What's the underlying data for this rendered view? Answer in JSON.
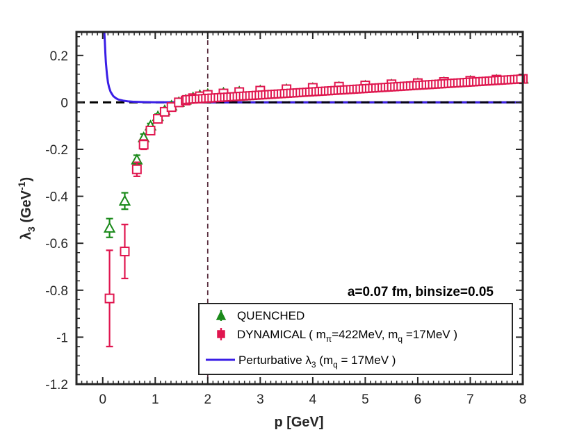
{
  "chart_data": {
    "type": "scatter",
    "title": "",
    "xlabel": "p [GeV]",
    "ylabel": {
      "main": "λ",
      "sub": "3",
      "unit_open": " (GeV",
      "unit_sup": "-1",
      "unit_close": ")"
    },
    "xlim": [
      -0.5,
      8
    ],
    "ylim": [
      -1.2,
      0.3
    ],
    "xticks": [
      0,
      1,
      2,
      3,
      4,
      5,
      6,
      7,
      8
    ],
    "yticks": [
      0.2,
      0,
      -0.2,
      -0.4,
      -0.6,
      -0.8,
      -1,
      -1.2
    ],
    "xtick_labels": [
      "0",
      "1",
      "2",
      "3",
      "4",
      "5",
      "6",
      "7",
      "8"
    ],
    "ytick_labels": [
      "0.2",
      "0",
      "-0.2",
      "-0.4",
      "-0.6",
      "-0.8",
      "-1",
      "-1.2"
    ],
    "reference_lines": {
      "horizontal_y": 0,
      "vertical_x": 2
    },
    "annotation": "a=0.07 fm, binsize=0.05",
    "colors": {
      "quenched": "#1a8a1a",
      "dynamical": "#e0164f",
      "perturbative": "#3a1ee6",
      "zero_line": "#000000",
      "vline": "#5a3040",
      "axis": "#262626"
    },
    "series": [
      {
        "name": "QUENCHED",
        "marker": "triangle",
        "x": [
          0.13,
          0.42,
          0.65,
          0.78,
          0.91,
          1.05,
          1.18,
          1.31,
          1.45,
          1.58,
          1.72,
          1.85,
          2.0,
          2.3,
          2.6,
          3.0,
          3.5,
          4.0,
          4.5,
          5.0,
          5.5,
          6.0,
          6.5,
          7.0,
          7.5,
          8.0
        ],
        "y": [
          -0.535,
          -0.42,
          -0.245,
          -0.15,
          -0.1,
          -0.06,
          -0.035,
          -0.015,
          0.0,
          0.01,
          0.02,
          0.03,
          0.035,
          0.04,
          0.045,
          0.05,
          0.055,
          0.06,
          0.065,
          0.07,
          0.075,
          0.08,
          0.085,
          0.09,
          0.095,
          0.1
        ],
        "err": [
          0.04,
          0.035,
          0.02,
          0.015,
          0.01,
          0.01,
          0.008,
          0.008,
          0.006,
          0.005,
          0.005,
          0.005,
          0.005,
          0.004,
          0.004,
          0.004,
          0.004,
          0.004,
          0.004,
          0.004,
          0.004,
          0.004,
          0.004,
          0.004,
          0.004,
          0.004
        ]
      },
      {
        "name": "DYNAMICAL",
        "legend_parts": [
          "DYNAMICAL ( m",
          "π",
          "=422MeV, m",
          "q",
          " =17MeV )"
        ],
        "marker": "square",
        "x": [
          0.13,
          0.42,
          0.65,
          0.78,
          0.91,
          1.05,
          1.18,
          1.31,
          1.45,
          1.58,
          1.72,
          1.85,
          2.0,
          2.3,
          2.6,
          3.0,
          3.5,
          4.0,
          4.5,
          5.0,
          5.5,
          6.0,
          6.5,
          7.0,
          7.5,
          8.0
        ],
        "y": [
          -0.835,
          -0.635,
          -0.285,
          -0.18,
          -0.12,
          -0.07,
          -0.04,
          -0.02,
          0.0,
          0.008,
          0.018,
          0.026,
          0.032,
          0.038,
          0.044,
          0.05,
          0.056,
          0.062,
          0.067,
          0.072,
          0.077,
          0.082,
          0.087,
          0.092,
          0.097,
          0.1
        ],
        "err": [
          0.205,
          0.115,
          0.03,
          0.02,
          0.015,
          0.012,
          0.01,
          0.008,
          0.006,
          0.005,
          0.005,
          0.005,
          0.005,
          0.004,
          0.004,
          0.004,
          0.004,
          0.004,
          0.004,
          0.004,
          0.004,
          0.004,
          0.004,
          0.004,
          0.004,
          0.004
        ]
      },
      {
        "name": "Perturbative",
        "legend_parts": [
          "Perturbative ",
          "λ",
          "3",
          " (m",
          "q",
          " = 17MeV )"
        ],
        "marker": "line",
        "x": [
          0.03,
          0.04,
          0.05,
          0.06,
          0.08,
          0.1,
          0.12,
          0.15,
          0.2,
          0.25,
          0.3,
          0.4,
          0.5,
          0.6,
          0.8,
          1.0,
          1.5,
          2.0,
          3.0,
          4.0,
          6.0,
          8.0
        ],
        "y": [
          0.3,
          0.26,
          0.21,
          0.17,
          0.12,
          0.085,
          0.065,
          0.045,
          0.027,
          0.018,
          0.012,
          0.007,
          0.004,
          0.0025,
          0.0012,
          0.0006,
          0.0002,
          0.0001,
          0.0,
          0.0,
          0.0,
          0.0
        ]
      }
    ]
  }
}
